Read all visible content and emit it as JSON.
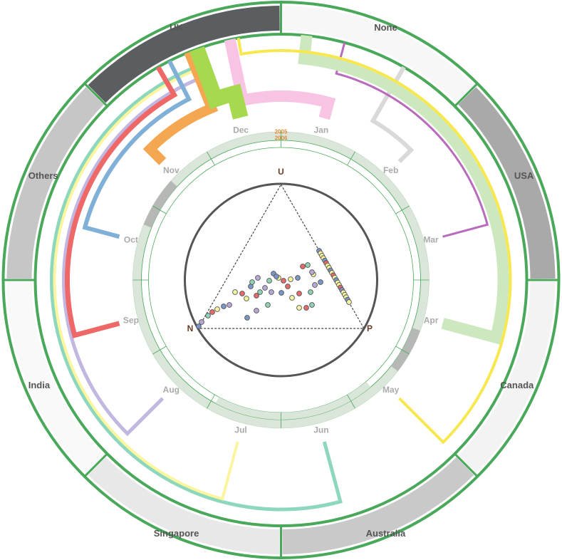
{
  "countries": [
    {
      "label": "UK",
      "fill": "#5a5e60"
    },
    {
      "label": "None",
      "fill": "#f6f7f6"
    },
    {
      "label": "USA",
      "fill": "#a9a9a9"
    },
    {
      "label": "Canada",
      "fill": "#f2f3f2"
    },
    {
      "label": "Australia",
      "fill": "#c8c9c8"
    },
    {
      "label": "Singapore",
      "fill": "#e7e8e7"
    },
    {
      "label": "India",
      "fill": "#f8f9f8"
    },
    {
      "label": "Others",
      "fill": "#c5c6c5"
    }
  ],
  "months": [
    "Jan",
    "Feb",
    "Mar",
    "Apr",
    "May",
    "Jun",
    "Jul",
    "Aug",
    "Sep",
    "Oct",
    "Nov",
    "Dec"
  ],
  "month_colors": {
    "Jan": "#f9c3e3",
    "Feb": "#d9d9d9",
    "Mar": "#b86bbd",
    "Apr": "#cde8bf",
    "May": "#f6e84e",
    "Jun": "#8dd7bd",
    "Jul": "#fbf5a0",
    "Aug": "#c2b7e0",
    "Sep": "#ef6868",
    "Oct": "#80b0d8",
    "Nov": "#f5a650",
    "Dec": "#a6d94e"
  },
  "years": [
    "2006",
    "2005"
  ],
  "ternary": {
    "top": "U",
    "left": "N",
    "right": "P"
  },
  "accent_color": "#4aa85a",
  "point_colors": [
    "#7a96c8",
    "#f6f4a0",
    "#e66a6a",
    "#8fd2b4",
    "#b8a8d8"
  ]
}
